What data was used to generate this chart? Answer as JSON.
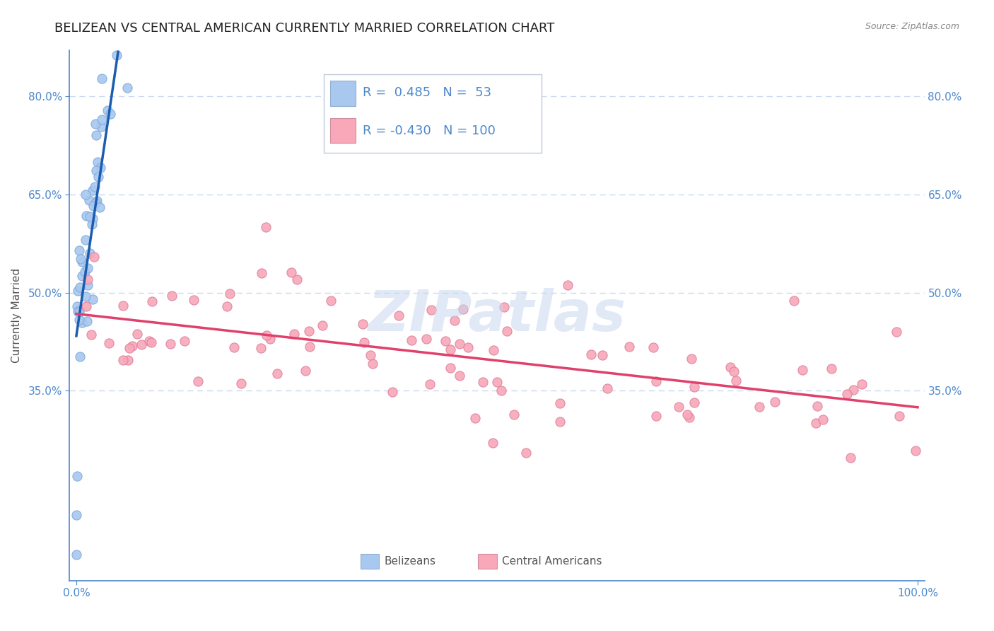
{
  "title": "BELIZEAN VS CENTRAL AMERICAN CURRENTLY MARRIED CORRELATION CHART",
  "source": "Source: ZipAtlas.com",
  "ylabel": "Currently Married",
  "axis_color": "#4d88cc",
  "grid_color": "#c8d8f0",
  "background_color": "#ffffff",
  "dot_color_blue": "#a8c8f0",
  "dot_color_blue_edge": "#80aad8",
  "dot_color_pink": "#f8a8b8",
  "dot_color_pink_edge": "#e080a0",
  "line_color_blue": "#1a5cb0",
  "line_color_pink": "#e0406a",
  "dashed_color_blue": "#aabcd8",
  "watermark_color": "#c8d8ee",
  "legend_r_blue": "0.485",
  "legend_n_blue": "53",
  "legend_r_pink": "-0.430",
  "legend_n_pink": "100",
  "legend_label_blue": "Belizeans",
  "legend_label_pink": "Central Americans",
  "title_fontsize": 13,
  "axis_label_fontsize": 11,
  "tick_label_fontsize": 11,
  "legend_fontsize": 13,
  "blue_reg_slope": 8.5,
  "blue_reg_intercept": 0.445,
  "pink_reg_slope": -0.148,
  "pink_reg_intercept": 0.47,
  "ylim_low": 0.06,
  "ylim_high": 0.87,
  "xlim_low": -0.008,
  "xlim_high": 1.008
}
